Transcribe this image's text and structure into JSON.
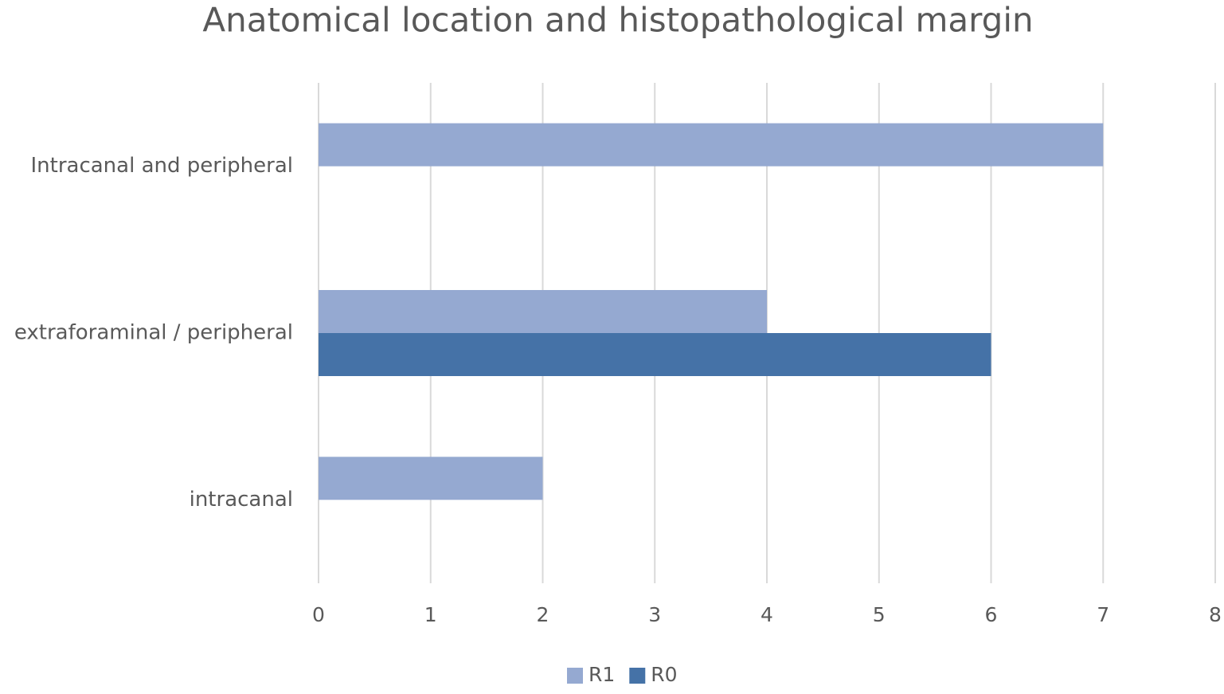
{
  "chart_data": {
    "type": "bar",
    "orientation": "horizontal",
    "title": "Anatomical location and histopathological margin",
    "categories": [
      "intracanal",
      "extraforaminal / peripheral",
      "Intracanal and peripheral"
    ],
    "series": [
      {
        "name": "R1",
        "color": "#95a9d1",
        "values": [
          2,
          4,
          7
        ]
      },
      {
        "name": "R0",
        "color": "#4572a7",
        "values": [
          0,
          6,
          0
        ]
      }
    ],
    "xlim": [
      0,
      8
    ],
    "xticks": [
      0,
      1,
      2,
      3,
      4,
      5,
      6,
      7,
      8
    ],
    "grid": true,
    "legend": "bottom"
  }
}
